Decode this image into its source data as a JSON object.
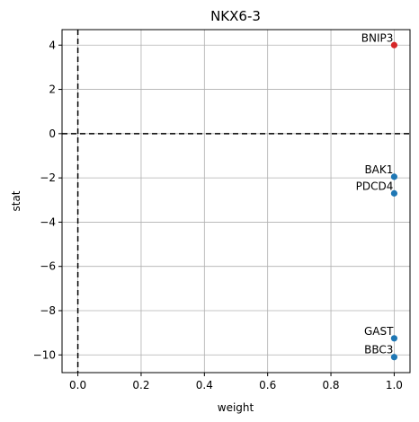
{
  "chart_data": {
    "type": "scatter",
    "title": "NKX6-3",
    "xlabel": "weight",
    "ylabel": "stat",
    "xlim": [
      -0.05,
      1.05
    ],
    "ylim": [
      -10.8,
      4.7
    ],
    "xticks": [
      0.0,
      0.2,
      0.4,
      0.6,
      0.8,
      1.0
    ],
    "xtick_labels": [
      "0.0",
      "0.2",
      "0.4",
      "0.6",
      "0.8",
      "1.0"
    ],
    "yticks": [
      -10,
      -8,
      -6,
      -4,
      -2,
      0,
      2,
      4
    ],
    "ytick_labels": [
      "−10",
      "−8",
      "−6",
      "−4",
      "−2",
      "0",
      "2",
      "4"
    ],
    "grid": true,
    "reference_lines": [
      {
        "orientation": "horizontal",
        "value": 0,
        "style": "dashed",
        "color": "#000000"
      },
      {
        "orientation": "vertical",
        "value": 0,
        "style": "dashed",
        "color": "#000000"
      }
    ],
    "points": [
      {
        "label": "BNIP3",
        "x": 1.0,
        "y": 4.0,
        "color": "#d62728"
      },
      {
        "label": "BAK1",
        "x": 1.0,
        "y": -1.95,
        "color": "#1f77b4"
      },
      {
        "label": "PDCD4",
        "x": 1.0,
        "y": -2.7,
        "color": "#1f77b4"
      },
      {
        "label": "GAST",
        "x": 1.0,
        "y": -9.25,
        "color": "#1f77b4"
      },
      {
        "label": "BBC3",
        "x": 1.0,
        "y": -10.1,
        "color": "#1f77b4"
      }
    ]
  }
}
